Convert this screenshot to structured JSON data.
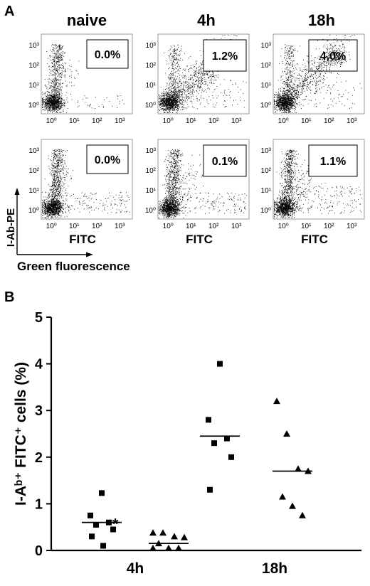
{
  "panel_a": {
    "label": "A",
    "column_titles": [
      "naive",
      "4h",
      "18h"
    ],
    "x_axis_label": "FITC",
    "y_axis_label": "I-Ab-PE",
    "corner_axis_label": "Green fluorescence",
    "tick_labels": [
      "10⁰",
      "10¹",
      "10²",
      "10³"
    ],
    "plots": [
      {
        "row": 0,
        "col": 0,
        "gate_percent": "0.0%"
      },
      {
        "row": 0,
        "col": 1,
        "gate_percent": "1.2%"
      },
      {
        "row": 0,
        "col": 2,
        "gate_percent": "4.0%"
      },
      {
        "row": 1,
        "col": 0,
        "gate_percent": "0.0%"
      },
      {
        "row": 1,
        "col": 1,
        "gate_percent": "0.1%"
      },
      {
        "row": 1,
        "col": 2,
        "gate_percent": "1.1%"
      }
    ]
  },
  "panel_b": {
    "label": "B",
    "annotation": "*"
  },
  "chart_data": {
    "type": "scatter",
    "ylabel": "I-Aᵇ⁺ FITC⁺ cells (%)",
    "ylim": [
      0,
      5
    ],
    "yticks": [
      "0",
      "1",
      "2",
      "3",
      "4",
      "5"
    ],
    "group_labels": [
      "4h",
      "18h"
    ],
    "series": [
      {
        "marker": "square",
        "group": "4h",
        "values": [
          1.23,
          0.75,
          0.6,
          0.55,
          0.45,
          0.3,
          0.1
        ],
        "mean": 0.6
      },
      {
        "marker": "triangle",
        "group": "4h",
        "values": [
          0.38,
          0.38,
          0.3,
          0.28,
          0.15,
          0.05,
          0.05,
          0.05
        ],
        "mean": 0.15
      },
      {
        "marker": "square",
        "group": "18h",
        "values": [
          4.0,
          2.8,
          2.4,
          2.3,
          2.0,
          1.3
        ],
        "mean": 2.45
      },
      {
        "marker": "triangle",
        "group": "18h",
        "values": [
          3.2,
          2.5,
          1.75,
          1.7,
          1.15,
          0.95,
          0.75
        ],
        "mean": 1.7
      }
    ]
  }
}
